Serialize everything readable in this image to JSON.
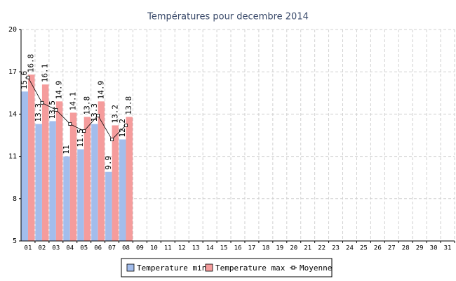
{
  "chart_data": {
    "type": "bar",
    "title": "Températures pour decembre 2014",
    "categories": [
      "01",
      "02",
      "03",
      "04",
      "05",
      "06",
      "07",
      "08",
      "09",
      "10",
      "11",
      "12",
      "13",
      "14",
      "15",
      "16",
      "17",
      "18",
      "19",
      "20",
      "21",
      "22",
      "23",
      "24",
      "25",
      "26",
      "27",
      "28",
      "29",
      "30",
      "31"
    ],
    "series": [
      {
        "name": "Temperature min",
        "color": "#a3bdec",
        "values": [
          15.6,
          13.3,
          13.5,
          11.0,
          11.5,
          13.3,
          9.9,
          12.2,
          null,
          null,
          null,
          null,
          null,
          null,
          null,
          null,
          null,
          null,
          null,
          null,
          null,
          null,
          null,
          null,
          null,
          null,
          null,
          null,
          null,
          null,
          null
        ]
      },
      {
        "name": "Temperature max",
        "color": "#f59c9c",
        "values": [
          16.8,
          16.1,
          14.9,
          14.1,
          13.8,
          14.9,
          13.2,
          13.8,
          null,
          null,
          null,
          null,
          null,
          null,
          null,
          null,
          null,
          null,
          null,
          null,
          null,
          null,
          null,
          null,
          null,
          null,
          null,
          null,
          null,
          null,
          null
        ]
      },
      {
        "name": "Moyenne",
        "type": "line",
        "color": "#000000",
        "values": [
          16.6,
          14.8,
          14.3,
          13.3,
          12.8,
          13.9,
          12.2,
          13.2,
          null,
          null,
          null,
          null,
          null,
          null,
          null,
          null,
          null,
          null,
          null,
          null,
          null,
          null,
          null,
          null,
          null,
          null,
          null,
          null,
          null,
          null,
          null
        ]
      }
    ],
    "ylim": [
      5,
      20
    ],
    "yticks": [
      5,
      8,
      11,
      14,
      17,
      20
    ],
    "grid": true,
    "legend": "bottom"
  }
}
